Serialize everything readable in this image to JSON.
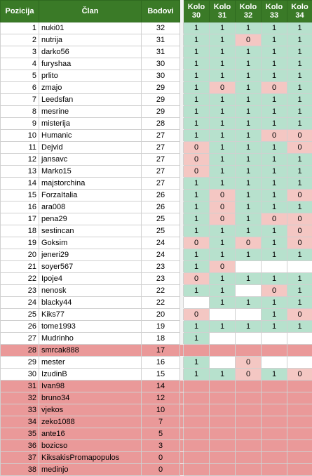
{
  "headers": {
    "position": "Pozicija",
    "member": "Član",
    "points": "Bodovi",
    "rounds": [
      {
        "top": "Kolo",
        "num": "30"
      },
      {
        "top": "Kolo",
        "num": "31"
      },
      {
        "top": "Kolo",
        "num": "32"
      },
      {
        "top": "Kolo",
        "num": "33"
      },
      {
        "top": "Kolo",
        "num": "34"
      }
    ]
  },
  "colors": {
    "header_green": "#3a7a27",
    "win_green": "#b7e1cd",
    "loss_red": "#f4c7c3",
    "eliminated_red": "#ea9999"
  },
  "rows": [
    {
      "pos": "1",
      "name": "nuki01",
      "points": "32",
      "rounds": [
        "1",
        "1",
        "1",
        "1",
        "1"
      ]
    },
    {
      "pos": "2",
      "name": "nutrija",
      "points": "31",
      "rounds": [
        "1",
        "1",
        "0",
        "1",
        "1"
      ]
    },
    {
      "pos": "3",
      "name": "darko56",
      "points": "31",
      "rounds": [
        "1",
        "1",
        "1",
        "1",
        "1"
      ]
    },
    {
      "pos": "4",
      "name": "furyshaa",
      "points": "30",
      "rounds": [
        "1",
        "1",
        "1",
        "1",
        "1"
      ]
    },
    {
      "pos": "5",
      "name": "prlito",
      "points": "30",
      "rounds": [
        "1",
        "1",
        "1",
        "1",
        "1"
      ]
    },
    {
      "pos": "6",
      "name": "zmajo",
      "points": "29",
      "rounds": [
        "1",
        "0",
        "1",
        "0",
        "1"
      ]
    },
    {
      "pos": "7",
      "name": "Leedsfan",
      "points": "29",
      "rounds": [
        "1",
        "1",
        "1",
        "1",
        "1"
      ]
    },
    {
      "pos": "8",
      "name": "mesrine",
      "points": "29",
      "rounds": [
        "1",
        "1",
        "1",
        "1",
        "1"
      ]
    },
    {
      "pos": "9",
      "name": "misterija",
      "points": "28",
      "rounds": [
        "1",
        "1",
        "1",
        "1",
        "1"
      ]
    },
    {
      "pos": "10",
      "name": "Humanic",
      "points": "27",
      "rounds": [
        "1",
        "1",
        "1",
        "0",
        "0"
      ]
    },
    {
      "pos": "11",
      "name": "Dejvid",
      "points": "27",
      "rounds": [
        "0",
        "1",
        "1",
        "1",
        "0"
      ]
    },
    {
      "pos": "12",
      "name": "jansavc",
      "points": "27",
      "rounds": [
        "0",
        "1",
        "1",
        "1",
        "1"
      ]
    },
    {
      "pos": "13",
      "name": "Marko15",
      "points": "27",
      "rounds": [
        "0",
        "1",
        "1",
        "1",
        "1"
      ]
    },
    {
      "pos": "14",
      "name": "majstorchina",
      "points": "27",
      "rounds": [
        "1",
        "1",
        "1",
        "1",
        "1"
      ]
    },
    {
      "pos": "15",
      "name": "ForzaItalia",
      "points": "26",
      "rounds": [
        "1",
        "0",
        "1",
        "1",
        "0"
      ]
    },
    {
      "pos": "16",
      "name": "ara008",
      "points": "26",
      "rounds": [
        "1",
        "0",
        "1",
        "1",
        "1"
      ]
    },
    {
      "pos": "17",
      "name": "pena29",
      "points": "25",
      "rounds": [
        "1",
        "0",
        "1",
        "0",
        "0"
      ]
    },
    {
      "pos": "18",
      "name": "sestincan",
      "points": "25",
      "rounds": [
        "1",
        "1",
        "1",
        "1",
        "0"
      ]
    },
    {
      "pos": "19",
      "name": "Goksim",
      "points": "24",
      "rounds": [
        "0",
        "1",
        "0",
        "1",
        "0"
      ]
    },
    {
      "pos": "20",
      "name": "jeneri29",
      "points": "24",
      "rounds": [
        "1",
        "1",
        "1",
        "1",
        "1"
      ]
    },
    {
      "pos": "21",
      "name": "soyer567",
      "points": "23",
      "rounds": [
        "1",
        "0",
        "",
        "",
        ""
      ]
    },
    {
      "pos": "22",
      "name": "Ipoje4",
      "points": "23",
      "rounds": [
        "0",
        "1",
        "1",
        "1",
        "1"
      ]
    },
    {
      "pos": "23",
      "name": "nenosk",
      "points": "22",
      "rounds": [
        "1",
        "1",
        "",
        "0",
        "1"
      ]
    },
    {
      "pos": "24",
      "name": "blacky44",
      "points": "22",
      "rounds": [
        "",
        "1",
        "1",
        "1",
        "1"
      ]
    },
    {
      "pos": "25",
      "name": "Kiks77",
      "points": "20",
      "rounds": [
        "0",
        "",
        "",
        "1",
        "0"
      ]
    },
    {
      "pos": "26",
      "name": "tome1993",
      "points": "19",
      "rounds": [
        "1",
        "1",
        "1",
        "1",
        "1"
      ]
    },
    {
      "pos": "27",
      "name": "Mudrinho",
      "points": "18",
      "rounds": [
        "1",
        "",
        "",
        "",
        ""
      ]
    },
    {
      "pos": "28",
      "name": "smrcak888",
      "points": "17",
      "rounds": [
        "",
        "",
        "",
        "",
        ""
      ],
      "eliminated": true
    },
    {
      "pos": "29",
      "name": "mester",
      "points": "16",
      "rounds": [
        "1",
        "",
        "0",
        "",
        ""
      ]
    },
    {
      "pos": "30",
      "name": "IzudinB",
      "points": "15",
      "rounds": [
        "1",
        "1",
        "0",
        "1",
        "0"
      ]
    },
    {
      "pos": "31",
      "name": "Ivan98",
      "points": "14",
      "rounds": [
        "",
        "",
        "",
        "",
        ""
      ],
      "eliminated": true
    },
    {
      "pos": "32",
      "name": "bruno34",
      "points": "12",
      "rounds": [
        "",
        "",
        "",
        "",
        ""
      ],
      "eliminated": true
    },
    {
      "pos": "33",
      "name": "vjekos",
      "points": "10",
      "rounds": [
        "",
        "",
        "",
        "",
        ""
      ],
      "eliminated": true
    },
    {
      "pos": "34",
      "name": "zeko1088",
      "points": "7",
      "rounds": [
        "",
        "",
        "",
        "",
        ""
      ],
      "eliminated": true
    },
    {
      "pos": "35",
      "name": "ante16",
      "points": "5",
      "rounds": [
        "",
        "",
        "",
        "",
        ""
      ],
      "eliminated": true
    },
    {
      "pos": "36",
      "name": "bozicso",
      "points": "3",
      "rounds": [
        "",
        "",
        "",
        "",
        ""
      ],
      "eliminated": true
    },
    {
      "pos": "37",
      "name": "KiksakisPromapopulos",
      "points": "0",
      "rounds": [
        "",
        "",
        "",
        "",
        ""
      ],
      "eliminated": true
    },
    {
      "pos": "38",
      "name": "medinjo",
      "points": "0",
      "rounds": [
        "",
        "",
        "",
        "",
        ""
      ],
      "eliminated": true
    }
  ]
}
